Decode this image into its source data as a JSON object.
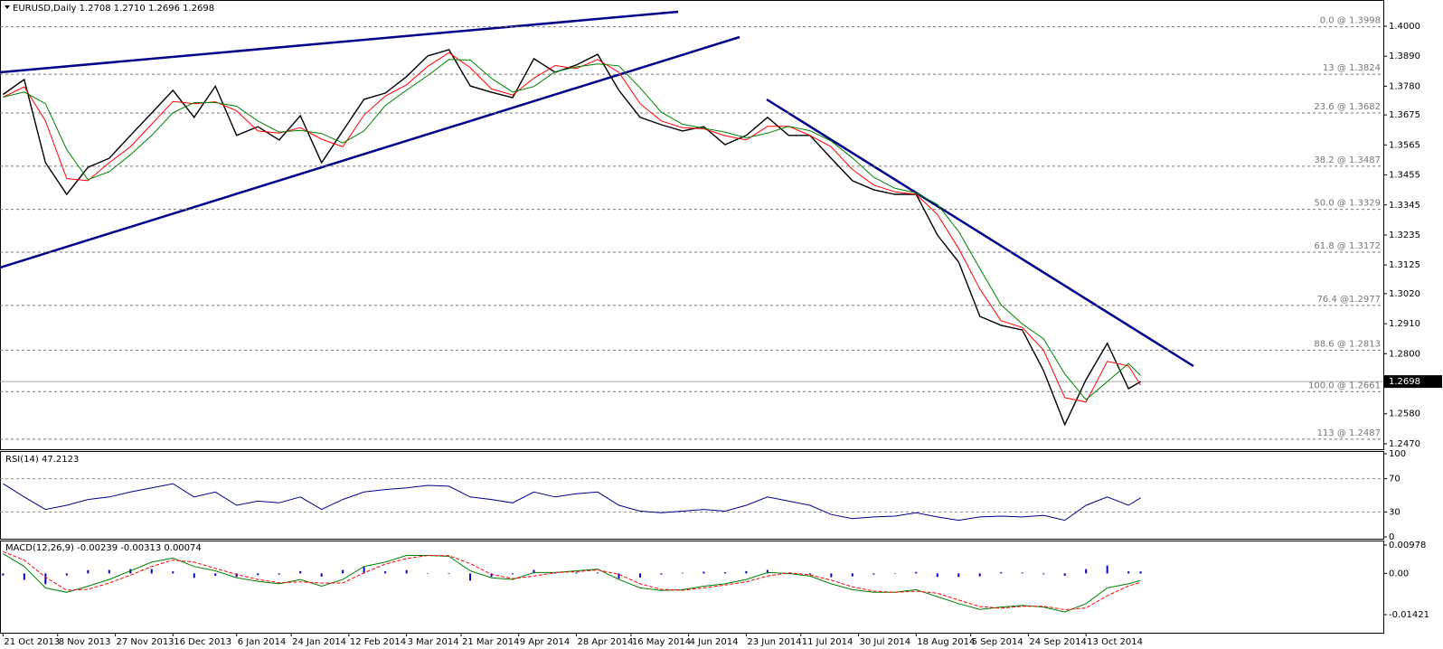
{
  "chart_data": [
    {
      "type": "line",
      "title": "EURUSD,Daily  1.2708 1.2710 1.2696 1.2698",
      "x": [
        "2013-10-21",
        "2013-10-28",
        "2013-11-04",
        "2013-11-11",
        "2013-11-18",
        "2013-11-25",
        "2013-12-02",
        "2013-12-09",
        "2013-12-16",
        "2013-12-23",
        "2013-12-30",
        "2014-01-06",
        "2014-01-13",
        "2014-01-20",
        "2014-01-27",
        "2014-02-03",
        "2014-02-10",
        "2014-02-17",
        "2014-02-24",
        "2014-03-03",
        "2014-03-10",
        "2014-03-17",
        "2014-03-24",
        "2014-03-31",
        "2014-04-07",
        "2014-04-14",
        "2014-04-21",
        "2014-04-28",
        "2014-05-05",
        "2014-05-12",
        "2014-05-19",
        "2014-05-26",
        "2014-06-02",
        "2014-06-09",
        "2014-06-16",
        "2014-06-23",
        "2014-06-30",
        "2014-07-07",
        "2014-07-14",
        "2014-07-21",
        "2014-07-28",
        "2014-08-04",
        "2014-08-11",
        "2014-08-18",
        "2014-08-25",
        "2014-09-01",
        "2014-09-08",
        "2014-09-15",
        "2014-09-22",
        "2014-09-29",
        "2014-10-06",
        "2014-10-13",
        "2014-10-20",
        "2014-10-27",
        "2014-10-31"
      ],
      "series": [
        {
          "color": "#000000",
          "values": [
            1.375,
            1.3805,
            1.35,
            1.3384,
            1.3483,
            1.3516,
            1.36,
            1.3682,
            1.3765,
            1.3666,
            1.378,
            1.36,
            1.3632,
            1.3583,
            1.3672,
            1.35,
            1.3616,
            1.3732,
            1.3755,
            1.3815,
            1.3891,
            1.3914,
            1.3781,
            1.3758,
            1.3738,
            1.3881,
            1.3831,
            1.3858,
            1.3897,
            1.3765,
            1.3666,
            1.3639,
            1.3616,
            1.3632,
            1.3566,
            1.36,
            1.3666,
            1.36,
            1.36,
            1.3516,
            1.3434,
            1.3401,
            1.3384,
            1.3384,
            1.3235,
            1.3136,
            1.2937,
            1.2904,
            1.2887,
            1.2738,
            1.254,
            1.2705,
            1.2838,
            1.2672,
            1.2698
          ]
        },
        {
          "color": "#ff0000",
          "values": [
            1.374,
            1.3778,
            1.3653,
            1.3442,
            1.3434,
            1.35,
            1.3558,
            1.3641,
            1.3724,
            1.3716,
            1.3723,
            1.369,
            1.3616,
            1.3608,
            1.3628,
            1.3586,
            1.3558,
            1.3674,
            1.3744,
            1.3785,
            1.3853,
            1.3903,
            1.3848,
            1.377,
            1.3748,
            1.381,
            1.3856,
            1.3845,
            1.3878,
            1.3831,
            1.3716,
            1.3653,
            1.3628,
            1.3624,
            1.3599,
            1.3583,
            1.3633,
            1.3633,
            1.36,
            1.3558,
            1.3475,
            1.3418,
            1.3393,
            1.3384,
            1.331,
            1.3186,
            1.3037,
            1.2921,
            1.2896,
            1.2813,
            1.2639,
            1.2623,
            1.2772,
            1.2755,
            1.2685
          ]
        },
        {
          "color": "#008000",
          "values": [
            1.374,
            1.3759,
            1.3716,
            1.3548,
            1.3438,
            1.3467,
            1.3529,
            1.36,
            1.3683,
            1.372,
            1.372,
            1.3707,
            1.3653,
            1.3612,
            1.3618,
            1.3607,
            1.3572,
            1.3616,
            1.3709,
            1.3765,
            1.3819,
            1.3878,
            1.3876,
            1.3809,
            1.3759,
            1.3779,
            1.3833,
            1.3851,
            1.3862,
            1.3855,
            1.3774,
            1.3685,
            1.3641,
            1.3626,
            1.3612,
            1.3591,
            1.3608,
            1.3633,
            1.3617,
            1.3579,
            1.3517,
            1.3447,
            1.3406,
            1.3389,
            1.3347,
            1.3248,
            1.3112,
            1.2979,
            1.2909,
            1.2855,
            1.2726,
            1.2631,
            1.2698,
            1.2764,
            1.272
          ]
        }
      ],
      "levels": [
        {
          "value": 1.3998,
          "label": "0.0 @ 1.3998"
        },
        {
          "value": 1.3824,
          "label": "13 @ 1.3824"
        },
        {
          "value": 1.3682,
          "label": "23.6 @ 1.3682"
        },
        {
          "value": 1.3487,
          "label": "38.2 @ 1.3487"
        },
        {
          "value": 1.3329,
          "label": "50.0 @ 1.3329"
        },
        {
          "value": 1.3172,
          "label": "61.8 @ 1.3172"
        },
        {
          "value": 1.2977,
          "label": "76.4 @1.2977"
        },
        {
          "value": 1.2813,
          "label": "88.6 @ 1.2813"
        },
        {
          "value": 1.2661,
          "label": "100.0 @ 1.2661"
        },
        {
          "value": 1.2487,
          "label": "113 @ 1.2487"
        }
      ],
      "last_price": 1.2698,
      "xlim": [
        "2013-10-20",
        "2015-01-19"
      ],
      "xticks": [
        {
          "value": "2013-10-21",
          "label": "21 Oct 2013"
        },
        {
          "value": "2013-11-08",
          "label": "8 Nov 2013"
        },
        {
          "value": "2013-11-27",
          "label": "27 Nov 2013"
        },
        {
          "value": "2013-12-16",
          "label": "16 Dec 2013"
        },
        {
          "value": "2014-01-06",
          "label": "6 Jan 2014"
        },
        {
          "value": "2014-01-24",
          "label": "24 Jan 2014"
        },
        {
          "value": "2014-02-12",
          "label": "12 Feb 2014"
        },
        {
          "value": "2014-03-03",
          "label": "3 Mar 2014"
        },
        {
          "value": "2014-03-21",
          "label": "21 Mar 2014"
        },
        {
          "value": "2014-04-09",
          "label": "9 Apr 2014"
        },
        {
          "value": "2014-04-28",
          "label": "28 Apr 2014"
        },
        {
          "value": "2014-05-16",
          "label": "16 May 2014"
        },
        {
          "value": "2014-06-04",
          "label": "4 Jun 2014"
        },
        {
          "value": "2014-06-23",
          "label": "23 Jun 2014"
        },
        {
          "value": "2014-07-11",
          "label": "11 Jul 2014"
        },
        {
          "value": "2014-07-30",
          "label": "30 Jul 2014"
        },
        {
          "value": "2014-08-18",
          "label": "18 Aug 2014"
        },
        {
          "value": "2014-09-05",
          "label": "5 Sep 2014"
        },
        {
          "value": "2014-09-24",
          "label": "24 Sep 2014"
        },
        {
          "value": "2014-10-13",
          "label": "13 Oct 2014"
        }
      ],
      "ylim": [
        1.245,
        1.4096
      ],
      "yticks": [
        {
          "value": 1.4,
          "label": "1.4000"
        },
        {
          "value": 1.389,
          "label": "1.3890"
        },
        {
          "value": 1.378,
          "label": "1.3780"
        },
        1.3675,
        1.3565,
        1.3455,
        1.3345,
        1.3235,
        1.3125,
        {
          "value": 1.302,
          "label": "1.3020"
        },
        {
          "value": 1.291,
          "label": "1.2910"
        },
        {
          "value": 1.28,
          "label": "1.2800"
        },
        {
          "value": 1.258,
          "label": "1.2580"
        },
        {
          "value": 1.247,
          "label": "1.2470"
        }
      ]
    },
    {
      "type": "line",
      "title": "RSI(14) 47.2123",
      "series": [
        {
          "color": "#00008b",
          "values": [
            64,
            48,
            33,
            38,
            45,
            48,
            54,
            59,
            64,
            48,
            54,
            38,
            43,
            41,
            48,
            33,
            45,
            54,
            57,
            59,
            62,
            61,
            48,
            45,
            41,
            54,
            48,
            52,
            54,
            38,
            31,
            29,
            31,
            33,
            31,
            38,
            48,
            43,
            38,
            27,
            22,
            24,
            25,
            29,
            24,
            20,
            24,
            25,
            24,
            26,
            20,
            38,
            48,
            38,
            47
          ]
        }
      ],
      "ylim": [
        0,
        100
      ],
      "yticks": [
        100,
        70,
        30,
        0
      ],
      "grid": true
    },
    {
      "type": "macd",
      "title": "MACD(12,26,9) -0.00239 -0.00313 0.00074",
      "series": [
        {
          "style": "bar",
          "color": "#0000cd",
          "values": [
            -0.0007,
            -0.0022,
            -0.0037,
            -0.0007,
            0.0011,
            0.0012,
            0.0015,
            0.0015,
            0.0007,
            -0.0015,
            -0.0008,
            -0.0012,
            -0.0006,
            -0.0004,
            0.0008,
            -0.0011,
            0.0012,
            0.0022,
            0.0007,
            0.0011,
            0.0,
            -0.0002,
            -0.0025,
            -0.0012,
            -0.0003,
            0.0012,
            0.0,
            0.0003,
            0.0003,
            -0.0018,
            -0.0014,
            -0.0004,
            0.0002,
            0.0006,
            0.0004,
            0.0008,
            0.0012,
            -0.0002,
            -0.0004,
            -0.0013,
            -0.001,
            -0.0004,
            0.0,
            0.0005,
            -0.0012,
            -0.0012,
            -0.001,
            0.0004,
            0.0003,
            -0.0003,
            -0.0008,
            0.0015,
            0.0027,
            0.0007,
            0.0007
          ]
        },
        {
          "style": "line",
          "color": "#008000",
          "values": [
            0.0068,
            0.0024,
            -0.005,
            -0.0065,
            -0.0044,
            -0.0021,
            0.0009,
            0.0039,
            0.0053,
            0.0024,
            0.0009,
            -0.0015,
            -0.0027,
            -0.0036,
            -0.0021,
            -0.0044,
            -0.0021,
            0.0024,
            0.0039,
            0.0062,
            0.0062,
            0.0059,
            0.0009,
            -0.0015,
            -0.0021,
            0.0003,
            0.0003,
            0.0009,
            0.0015,
            -0.0021,
            -0.005,
            -0.0059,
            -0.0056,
            -0.0044,
            -0.0036,
            -0.0021,
            0.0003,
            0.0,
            -0.0009,
            -0.0036,
            -0.0056,
            -0.0065,
            -0.0065,
            -0.0056,
            -0.008,
            -0.0104,
            -0.0124,
            -0.0116,
            -0.011,
            -0.0116,
            -0.0133,
            -0.0104,
            -0.005,
            -0.0036,
            -0.0024
          ]
        },
        {
          "style": "dashed",
          "color": "#ff0000",
          "values": [
            0.0075,
            0.0046,
            -0.0013,
            -0.0058,
            -0.0055,
            -0.0033,
            -0.0006,
            0.0024,
            0.0046,
            0.0039,
            0.0017,
            -0.0003,
            -0.0021,
            -0.0032,
            -0.0029,
            -0.0033,
            -0.0033,
            0.0002,
            0.0032,
            0.0051,
            0.0062,
            0.0061,
            0.0034,
            -0.0003,
            -0.0018,
            -0.0009,
            0.0003,
            0.0006,
            0.0012,
            -0.0003,
            -0.0036,
            -0.0055,
            -0.0058,
            -0.005,
            -0.004,
            -0.0029,
            -0.0009,
            0.0002,
            -0.0005,
            -0.0023,
            -0.0046,
            -0.0061,
            -0.0065,
            -0.0061,
            -0.0068,
            -0.0092,
            -0.0114,
            -0.012,
            -0.0113,
            -0.0113,
            -0.0125,
            -0.0119,
            -0.0077,
            -0.0043,
            -0.0031
          ]
        }
      ],
      "ylim": [
        -0.01421,
        0.00978
      ],
      "yticks": [
        0.00978,
        {
          "value": 0,
          "label": "0.00"
        },
        -0.01421
      ]
    }
  ]
}
